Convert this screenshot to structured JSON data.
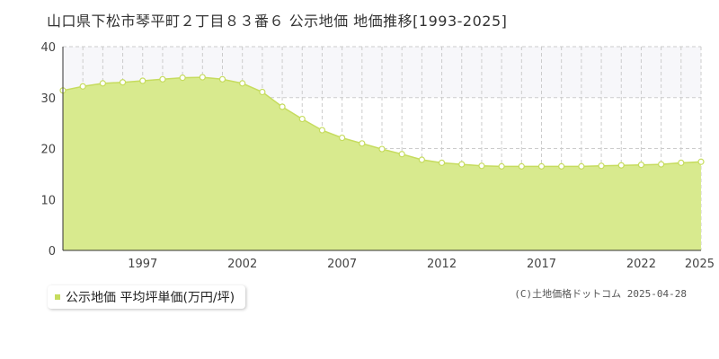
{
  "chart_data": {
    "type": "area",
    "title": "山口県下松市琴平町２丁目８３番６ 公示地価 地価推移[1993-2025]",
    "xlabel": "",
    "ylabel": "",
    "x": [
      1993,
      1994,
      1995,
      1996,
      1997,
      1998,
      1999,
      2000,
      2001,
      2002,
      2003,
      2004,
      2005,
      2006,
      2007,
      2008,
      2009,
      2010,
      2011,
      2012,
      2013,
      2014,
      2015,
      2016,
      2017,
      2018,
      2019,
      2020,
      2021,
      2022,
      2023,
      2024,
      2025
    ],
    "series": [
      {
        "name": "公示地価 平均坪単価(万円/坪)",
        "values": [
          31.4,
          32.2,
          32.8,
          33.0,
          33.3,
          33.6,
          33.9,
          34.0,
          33.6,
          32.8,
          31.1,
          28.2,
          25.8,
          23.6,
          22.1,
          21.0,
          19.9,
          18.9,
          17.8,
          17.2,
          16.9,
          16.6,
          16.5,
          16.5,
          16.5,
          16.5,
          16.5,
          16.6,
          16.7,
          16.8,
          16.9,
          17.2,
          17.4
        ]
      }
    ],
    "ylim": [
      0,
      40
    ],
    "xlim": [
      1993,
      2025
    ],
    "y_ticks": [
      "0",
      "10",
      "20",
      "30",
      "40"
    ],
    "x_ticks": [
      "1997",
      "2002",
      "2007",
      "2012",
      "2017",
      "2022",
      "2025"
    ],
    "highlight_band": [
      30,
      40
    ],
    "grid": true,
    "legend_position": "bottom-left",
    "colors": {
      "fill": "#d8ea8e",
      "line": "#c6dc5e",
      "marker_fill": "#ffffff",
      "grid": "#cccccc",
      "band": "#f7f7fa"
    }
  },
  "legend": {
    "label": "公示地価 平均坪単価(万円/坪)"
  },
  "copyright": "(C)土地価格ドットコム 2025-04-28"
}
